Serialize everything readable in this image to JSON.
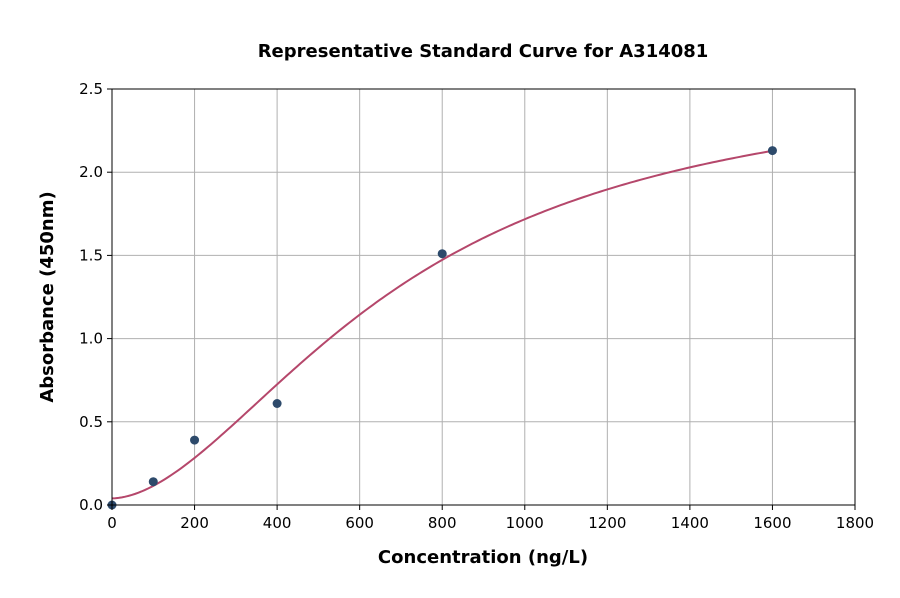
{
  "chart_data": {
    "type": "scatter",
    "title": "Representative Standard Curve for A314081",
    "xlabel": "Concentration (ng/L)",
    "ylabel": "Absorbance (450nm)",
    "xlim": [
      0,
      1800
    ],
    "ylim": [
      0,
      2.5
    ],
    "xticks": [
      0,
      200,
      400,
      600,
      800,
      1000,
      1200,
      1400,
      1600,
      1800
    ],
    "yticks": [
      0.0,
      0.5,
      1.0,
      1.5,
      2.0,
      2.5
    ],
    "grid": true,
    "points": [
      {
        "x": 0,
        "y": 0.0
      },
      {
        "x": 100,
        "y": 0.14
      },
      {
        "x": 200,
        "y": 0.39
      },
      {
        "x": 400,
        "y": 0.61
      },
      {
        "x": 800,
        "y": 1.51
      },
      {
        "x": 1600,
        "y": 2.13
      }
    ],
    "fit_curve": {
      "model": "4PL",
      "a": 0.04,
      "b": 1.8,
      "c": 700,
      "d": 2.6,
      "x_range": [
        0,
        1600
      ]
    },
    "colors": {
      "points": "#2d4a6b",
      "curve": "#b5476b",
      "grid": "#b0b0b0"
    }
  }
}
